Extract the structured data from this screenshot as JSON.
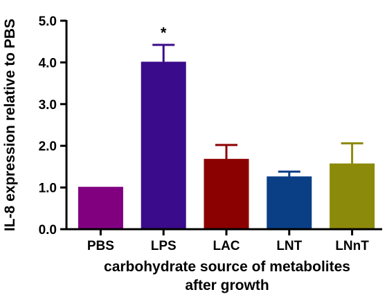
{
  "chart_data": {
    "type": "bar",
    "categories": [
      "PBS",
      "LPS",
      "LAC",
      "LNT",
      "LNnT"
    ],
    "values": [
      1.0,
      4.0,
      1.67,
      1.25,
      1.56
    ],
    "error_upper": [
      0.0,
      0.42,
      0.35,
      0.13,
      0.5
    ],
    "colors": [
      "#800080",
      "#3a0b8a",
      "#8b0000",
      "#0a3f86",
      "#8c8a0a"
    ],
    "ylabel": "IL-8 expression relative to PBS",
    "xlabel_lines": [
      "carbohydrate source of metabolites",
      "after growth"
    ],
    "ylim": [
      0,
      5
    ],
    "yticks": [
      "0.0",
      "1.0",
      "2.0",
      "3.0",
      "4.0",
      "5.0"
    ],
    "ytick_values": [
      0,
      1,
      2,
      3,
      4,
      5
    ],
    "annotations": [
      {
        "category": "LPS",
        "text": "*"
      }
    ],
    "grid": false
  }
}
